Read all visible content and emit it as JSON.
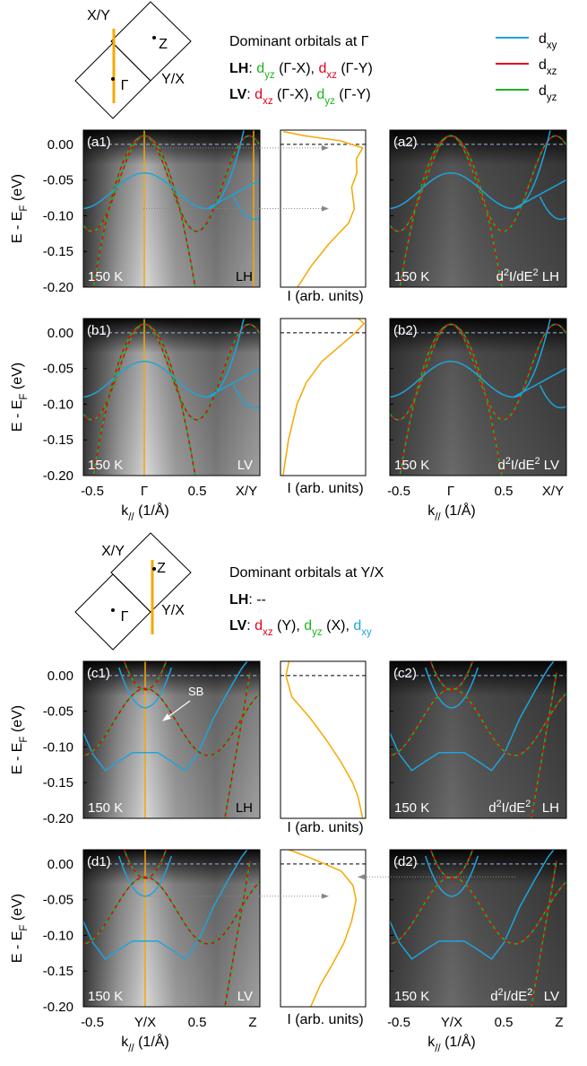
{
  "legend": [
    {
      "color": "#1ea4dc",
      "label": [
        {
          "text": "d"
        },
        {
          "text": "xy",
          "sub": true
        }
      ]
    },
    {
      "color": "#e3001b",
      "label": [
        {
          "text": "d"
        },
        {
          "text": "xz",
          "sub": true
        }
      ]
    },
    {
      "color": "#1db31d",
      "label": [
        {
          "text": "d"
        },
        {
          "text": "yz",
          "sub": true
        }
      ]
    }
  ],
  "sections": [
    {
      "bz_labels": {
        "top": "X/Y",
        "z": "Z",
        "gamma": "Γ",
        "side": "Y/X"
      },
      "heading": "Dominant orbitals at Γ",
      "lh": [
        {
          "text": "LH",
          "bold": true
        },
        {
          "text": ": "
        },
        {
          "text": "d",
          "color": "#1db31d"
        },
        {
          "text": "yz",
          "sub": true,
          "color": "#1db31d"
        },
        {
          "text": " (Γ-X), "
        },
        {
          "text": "d",
          "color": "#e3001b"
        },
        {
          "text": "xz",
          "sub": true,
          "color": "#e3001b"
        },
        {
          "text": " (Γ-Y)"
        }
      ],
      "lv": [
        {
          "text": "LV",
          "bold": true
        },
        {
          "text": ": "
        },
        {
          "text": "d",
          "color": "#e3001b"
        },
        {
          "text": "xz",
          "sub": true,
          "color": "#e3001b"
        },
        {
          "text": " (Γ-X), "
        },
        {
          "text": "d",
          "color": "#1db31d"
        },
        {
          "text": "yz",
          "sub": true,
          "color": "#1db31d"
        },
        {
          "text": " (Γ-Y)"
        }
      ],
      "y_axis_label": [
        {
          "text": "E - E"
        },
        {
          "text": "F",
          "sub": true
        },
        {
          "text": " (eV)"
        }
      ],
      "y_ticks": [
        "0.00",
        "-0.05",
        "-0.10",
        "-0.15",
        "-0.20"
      ],
      "x_ticks": [
        "-0.5",
        "Γ",
        "0.5",
        "X/Y"
      ],
      "x_axis_label": [
        {
          "text": "k"
        },
        {
          "text": "//",
          "sub": true
        },
        {
          "text": " (1/Å)"
        }
      ],
      "intensity_label": "I (arb. units)",
      "rows": [
        {
          "left": {
            "tag": "(a1)",
            "temp": "150 K",
            "mode": [
              {
                "text": "LH"
              }
            ]
          },
          "right": {
            "tag": "(a2)",
            "temp": "150 K",
            "mode": [
              {
                "text": "d"
              },
              {
                "text": "2",
                "sup": true
              },
              {
                "text": "I/dE"
              },
              {
                "text": "2",
                "sup": true
              },
              {
                "text": " LH"
              }
            ]
          }
        },
        {
          "left": {
            "tag": "(b1)",
            "temp": "150 K",
            "mode": [
              {
                "text": "LV"
              }
            ]
          },
          "right": {
            "tag": "(b2)",
            "temp": "150 K",
            "mode": [
              {
                "text": "d"
              },
              {
                "text": "2",
                "sup": true
              },
              {
                "text": "I/dE"
              },
              {
                "text": "2",
                "sup": true
              },
              {
                "text": " LV"
              }
            ]
          }
        }
      ]
    },
    {
      "bz_labels": {
        "top": "X/Y",
        "z": "Z",
        "gamma": "Γ",
        "side": "Y/X"
      },
      "heading": "Dominant orbitals at Y/X",
      "lh": [
        {
          "text": "LH",
          "bold": true
        },
        {
          "text": ": --"
        }
      ],
      "lv": [
        {
          "text": "LV",
          "bold": true
        },
        {
          "text": ": "
        },
        {
          "text": "d",
          "color": "#e3001b"
        },
        {
          "text": "xz",
          "sub": true,
          "color": "#e3001b"
        },
        {
          "text": " (Y), "
        },
        {
          "text": "d",
          "color": "#1db31d"
        },
        {
          "text": "yz",
          "sub": true,
          "color": "#1db31d"
        },
        {
          "text": " (X), "
        },
        {
          "text": "d",
          "color": "#1ea4dc"
        },
        {
          "text": "xy",
          "sub": true,
          "color": "#1ea4dc"
        }
      ],
      "y_axis_label": [
        {
          "text": "E - E"
        },
        {
          "text": "F",
          "sub": true
        },
        {
          "text": " (eV)"
        }
      ],
      "y_ticks": [
        "0.00",
        "-0.05",
        "-0.10",
        "-0.15",
        "-0.20"
      ],
      "x_ticks": [
        "-0.5",
        "Y/X",
        "0.5",
        "Z"
      ],
      "x_axis_label": [
        {
          "text": "k"
        },
        {
          "text": "//",
          "sub": true
        },
        {
          "text": " (1/Å)"
        }
      ],
      "intensity_label": "I (arb. units)",
      "rows": [
        {
          "left": {
            "tag": "(c1)",
            "temp": "150 K",
            "mode": [
              {
                "text": "LH"
              }
            ],
            "annotation": "SB"
          },
          "right": {
            "tag": "(c2)",
            "temp": "150 K",
            "mode": [
              {
                "text": "d"
              },
              {
                "text": "2",
                "sup": true
              },
              {
                "text": "I/dE"
              },
              {
                "text": "2",
                "sup": true
              },
              {
                "text": "   LH"
              }
            ]
          }
        },
        {
          "left": {
            "tag": "(d1)",
            "temp": "150 K",
            "mode": [
              {
                "text": "LV"
              }
            ]
          },
          "right": {
            "tag": "(d2)",
            "temp": "150 K",
            "mode": [
              {
                "text": "d"
              },
              {
                "text": "2",
                "sup": true
              },
              {
                "text": "I/dE"
              },
              {
                "text": "2",
                "sup": true
              },
              {
                "text": "   LV"
              }
            ]
          }
        }
      ]
    }
  ]
}
